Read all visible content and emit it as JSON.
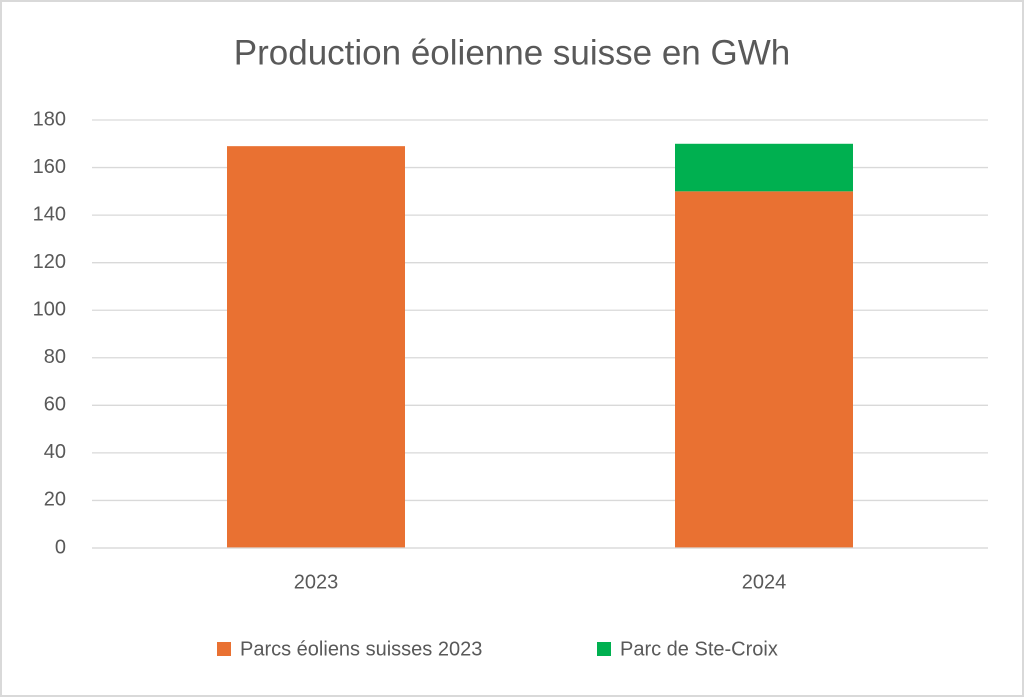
{
  "chart_data": {
    "type": "stacked_bar",
    "title": "Production éolienne suisse en GWh",
    "categories": [
      "2023",
      "2024"
    ],
    "series": [
      {
        "name": "Parcs éoliens suisses 2023",
        "color": "#e97132",
        "values": [
          169,
          150
        ]
      },
      {
        "name": "Parc de Ste-Croix",
        "color": "#00b050",
        "values": [
          null,
          20
        ]
      }
    ],
    "ylim": [
      0,
      180
    ],
    "yticks": [
      0,
      20,
      40,
      60,
      80,
      100,
      120,
      140,
      160,
      180
    ],
    "grid": true,
    "legend": "bottom"
  }
}
